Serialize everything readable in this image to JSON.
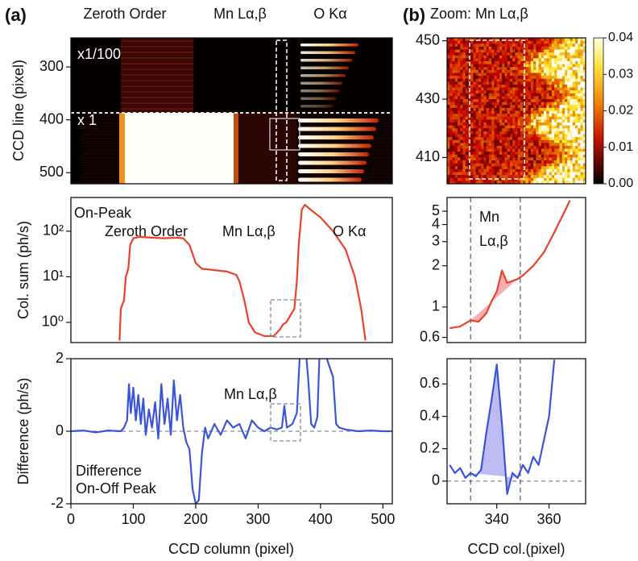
{
  "panels": [
    "(a)",
    "(b)"
  ],
  "chart_data": [
    {
      "type": "heatmap",
      "y_label": "CCD line (pixel)",
      "ylim": [
        521,
        245
      ],
      "yticks": [
        300,
        400,
        500
      ],
      "annotations": [
        "Zeroth Order",
        "Mn Lα,β",
        "O Kα",
        "x1/100",
        "x 1"
      ]
    },
    {
      "type": "heatmap",
      "title": "Zoom: Mn Lα,β",
      "ylim": [
        401,
        451
      ],
      "yticks": [
        410,
        430,
        450
      ],
      "clim": [
        0,
        0.04
      ],
      "cticks": [
        {
          "value": 0,
          "label": "0.00"
        },
        {
          "value": 0.01,
          "label": "0.01"
        },
        {
          "value": 0.02,
          "label": "0.02"
        },
        {
          "value": 0.03,
          "label": "0.03"
        },
        {
          "value": 0.04,
          "label": "0.04"
        }
      ]
    },
    {
      "type": "line",
      "y_label": "Col. sum (ph/s)",
      "log_y": true,
      "color": "#e8412c",
      "xlim": [
        0,
        515
      ],
      "ylim": [
        0.36,
        550
      ],
      "yticks": [
        {
          "value": 1,
          "label": "10⁰"
        },
        {
          "value": 10,
          "label": "10¹"
        },
        {
          "value": 100,
          "label": "10²"
        }
      ],
      "annotations": [
        "On-Peak",
        "Zeroth Order",
        "Mn Lα,β",
        "O Kα"
      ],
      "x": [
        78,
        80,
        85,
        88,
        92,
        95,
        100,
        110,
        130,
        150,
        170,
        180,
        190,
        200,
        210,
        230,
        250,
        265,
        270,
        278,
        285,
        295,
        310,
        325,
        335,
        340,
        345,
        350,
        358,
        362,
        365,
        370,
        375,
        380,
        400,
        420,
        440,
        455,
        465,
        472
      ],
      "values": [
        0.4,
        2,
        3,
        10,
        15,
        50,
        70,
        75,
        72,
        70,
        72,
        70,
        50,
        20,
        15,
        14,
        13,
        11,
        8,
        3,
        1,
        0.6,
        0.5,
        0.5,
        0.7,
        0.9,
        1,
        1.3,
        2,
        8,
        50,
        300,
        380,
        330,
        200,
        100,
        40,
        10,
        2,
        0.4
      ]
    },
    {
      "type": "line",
      "log_y": true,
      "color": "#e8412c",
      "shade_color": "#f4a0a8",
      "xlim": [
        321,
        374
      ],
      "ylim": [
        0.55,
        6.3
      ],
      "yticks": [
        0.6,
        1,
        2,
        3,
        4,
        5
      ],
      "markers": [
        330,
        349
      ],
      "annotations": [
        "Mn",
        "Lα,β"
      ],
      "x": [
        322,
        326,
        330,
        333,
        336,
        338,
        340,
        342,
        344,
        346,
        348,
        350,
        354,
        358,
        362,
        366,
        368
      ],
      "values": [
        0.7,
        0.72,
        0.8,
        0.78,
        0.9,
        1.1,
        1.3,
        1.85,
        1.5,
        1.55,
        1.6,
        1.7,
        2.0,
        2.5,
        3.5,
        5,
        6
      ]
    },
    {
      "type": "line",
      "y_label": "Difference  (ph/s)",
      "x_label": "CCD column (pixel)",
      "color": "#3a55d8",
      "xlim": [
        0,
        515
      ],
      "xticks": [
        0,
        100,
        200,
        300,
        400,
        500
      ],
      "ylim": [
        -2,
        2
      ],
      "yticks": [
        -2,
        0,
        2
      ],
      "hline": 0,
      "annotations": [
        "Mn Lα,β",
        "Difference",
        "On-Off Peak"
      ],
      "x": [
        0,
        20,
        40,
        60,
        80,
        85,
        90,
        93,
        96,
        100,
        104,
        108,
        112,
        116,
        120,
        125,
        130,
        135,
        140,
        145,
        150,
        155,
        160,
        165,
        170,
        175,
        180,
        185,
        190,
        195,
        200,
        205,
        210,
        215,
        220,
        230,
        240,
        250,
        260,
        270,
        280,
        290,
        300,
        310,
        320,
        330,
        338,
        342,
        346,
        355,
        362,
        368,
        375,
        380,
        385,
        390,
        395,
        400,
        410,
        420,
        425,
        430,
        440,
        460,
        480,
        500,
        515
      ],
      "values": [
        0,
        0.02,
        -0.03,
        0.02,
        0,
        0.1,
        0.3,
        1.3,
        0.5,
        1.2,
        0.3,
        1.0,
        0.2,
        0.9,
        -0.1,
        0.6,
        0.1,
        0.8,
        -0.2,
        1.3,
        0.2,
        0.9,
        -0.1,
        1.4,
        0.3,
        1.0,
        0.1,
        -0.3,
        -0.5,
        -1.6,
        -2,
        -1.9,
        -0.6,
        0.1,
        -0.2,
        0.2,
        -0.1,
        0.3,
        0.1,
        0.2,
        -0.2,
        0.3,
        0.1,
        0,
        0.1,
        0.05,
        0.1,
        0.7,
        0.1,
        0.2,
        0.5,
        2.5,
        2.5,
        1.5,
        0.2,
        0.1,
        0.4,
        3,
        2,
        1.5,
        0.2,
        0.1,
        0.05,
        0,
        0.02,
        0,
        0
      ]
    },
    {
      "type": "line",
      "x_label": "CCD col.(pixel)",
      "color": "#3a55d8",
      "shade_color": "#b3aef0",
      "xlim": [
        321,
        374
      ],
      "xticks": [
        340,
        360
      ],
      "ylim": [
        -0.14,
        0.756
      ],
      "yticks": [
        0,
        0.2,
        0.4,
        0.6
      ],
      "hline": 0,
      "markers": [
        330,
        349
      ],
      "x": [
        322,
        324,
        326,
        328,
        330,
        332,
        334,
        336,
        338,
        340,
        342,
        344,
        346,
        348,
        350,
        352,
        354,
        356,
        358,
        360,
        362
      ],
      "values": [
        0.1,
        0.05,
        0.08,
        0.02,
        0.05,
        0.03,
        0.07,
        0.3,
        0.5,
        0.72,
        0.35,
        -0.08,
        0.05,
        0.02,
        0.1,
        0.05,
        0.15,
        0.1,
        0.25,
        0.4,
        0.75
      ]
    }
  ]
}
